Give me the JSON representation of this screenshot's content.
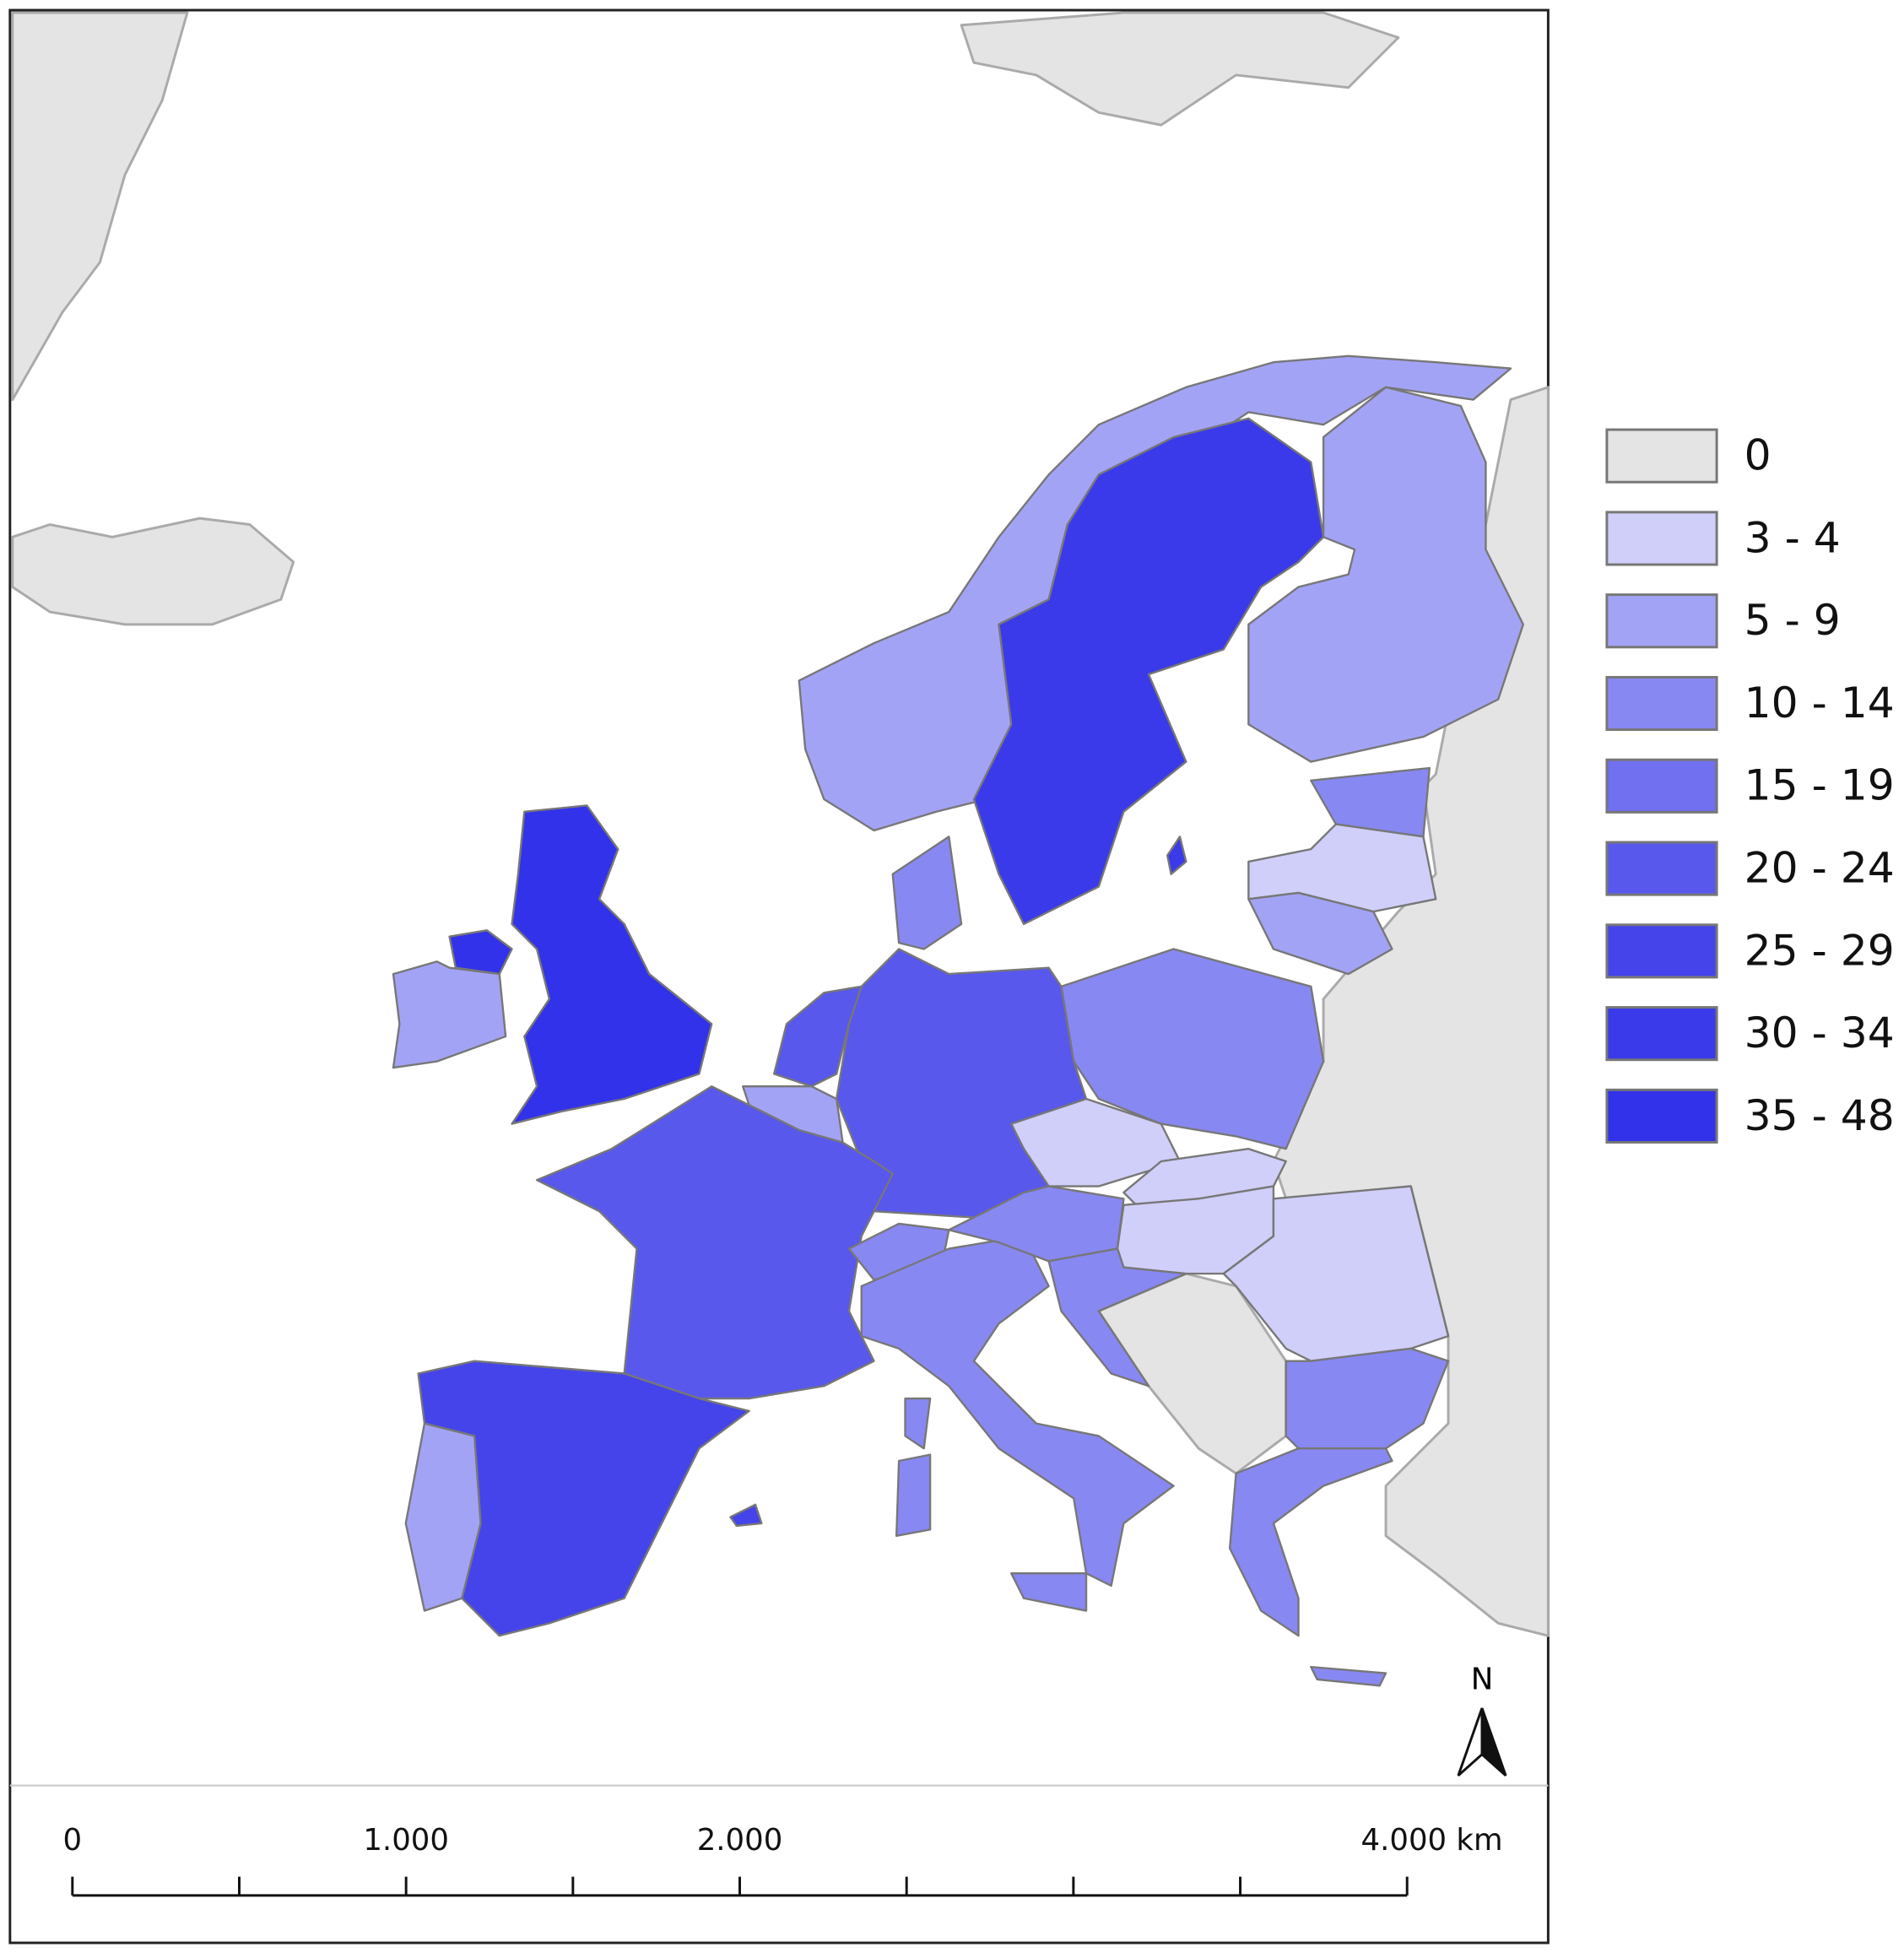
{
  "legend": {
    "items": [
      {
        "label": "0",
        "color": "#e4e4e4"
      },
      {
        "label": "3 - 4",
        "color": "#cfcff9"
      },
      {
        "label": "5 - 9",
        "color": "#a3a3f6"
      },
      {
        "label": "10 - 14",
        "color": "#8888f3"
      },
      {
        "label": "15 - 19",
        "color": "#7070f0"
      },
      {
        "label": "20 - 24",
        "color": "#5858ec"
      },
      {
        "label": "25 - 29",
        "color": "#4444ea"
      },
      {
        "label": "30 - 34",
        "color": "#3a3aea"
      },
      {
        "label": "35 - 48",
        "color": "#3232ea"
      }
    ]
  },
  "scale_bar": {
    "labels": [
      "0",
      "1.000",
      "2.000",
      "4.000 km"
    ]
  },
  "north_arrow": {
    "label": "N"
  }
}
